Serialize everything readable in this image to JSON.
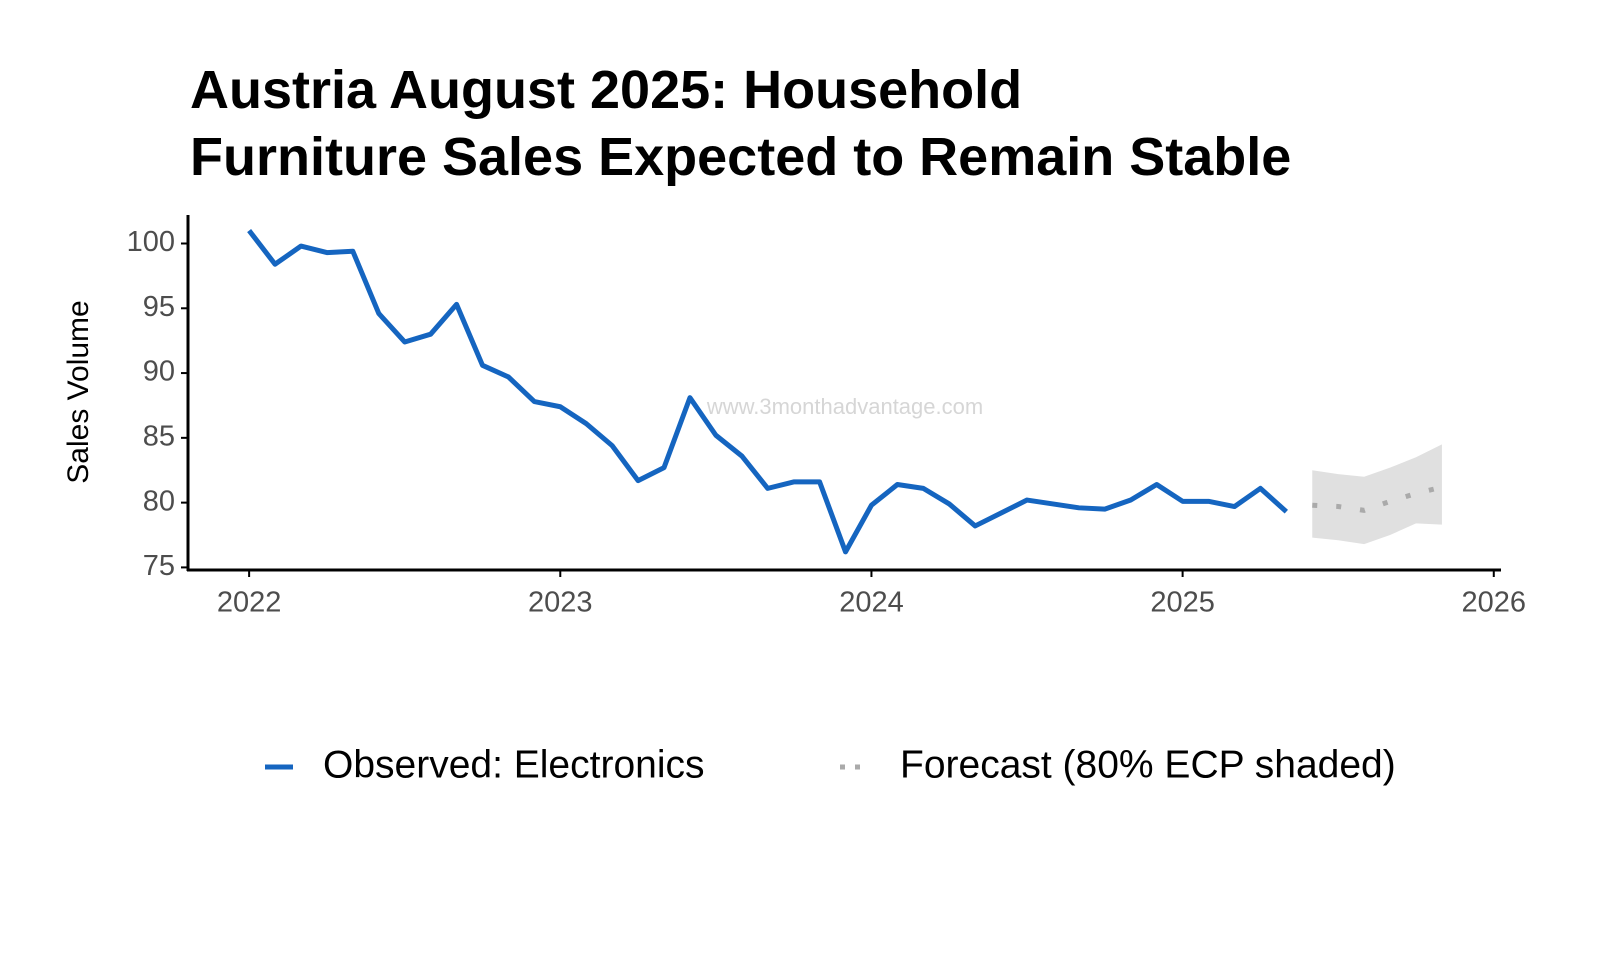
{
  "chart_data": {
    "type": "line",
    "title": [
      "Austria August 2025: Household",
      "Furniture Sales Expected to Remain Stable"
    ],
    "y_label": "Sales Volume",
    "watermark": "www.3monthadvantage.com",
    "xlim": [
      2021.81,
      2026.02
    ],
    "xticks": [
      2022,
      2023,
      2024,
      2025,
      2026
    ],
    "ylim": [
      74.8,
      102.2
    ],
    "yticks": [
      75,
      80,
      85,
      90,
      95,
      100
    ],
    "grid": false,
    "series": [
      {
        "name": "Observed: Electronics",
        "color": "#1565c0",
        "style": "solid",
        "x": [
          "2022-01",
          "2022-02",
          "2022-03",
          "2022-04",
          "2022-05",
          "2022-06",
          "2022-07",
          "2022-08",
          "2022-09",
          "2022-10",
          "2022-11",
          "2022-12",
          "2023-01",
          "2023-02",
          "2023-03",
          "2023-04",
          "2023-05",
          "2023-06",
          "2023-07",
          "2023-08",
          "2023-09",
          "2023-10",
          "2023-11",
          "2023-12",
          "2024-01",
          "2024-02",
          "2024-03",
          "2024-04",
          "2024-05",
          "2024-06",
          "2024-07",
          "2024-08",
          "2024-09",
          "2024-10",
          "2024-11",
          "2024-12",
          "2025-01",
          "2025-02",
          "2025-03",
          "2025-04",
          "2025-05"
        ],
        "values": [
          101.0,
          98.4,
          99.8,
          99.3,
          99.4,
          94.6,
          92.4,
          93.0,
          95.3,
          90.6,
          89.7,
          87.8,
          87.4,
          86.1,
          84.4,
          81.7,
          82.7,
          88.1,
          85.2,
          83.6,
          81.1,
          81.6,
          81.6,
          76.2,
          79.8,
          81.4,
          81.1,
          79.9,
          78.2,
          79.2,
          80.2,
          79.9,
          79.6,
          79.5,
          80.2,
          81.4,
          80.1,
          80.1,
          79.7,
          81.1,
          79.3
        ]
      },
      {
        "name": "Forecast (80% ECP shaded)",
        "color": "#aaaaaa",
        "style": "dotted",
        "band_color": "#e0e0e0",
        "x": [
          "2025-06",
          "2025-07",
          "2025-08",
          "2025-09",
          "2025-10",
          "2025-11"
        ],
        "values": [
          79.8,
          79.7,
          79.4,
          80.1,
          80.7,
          81.2
        ],
        "upper": [
          82.5,
          82.2,
          82.0,
          82.7,
          83.5,
          84.5
        ],
        "lower": [
          77.3,
          77.1,
          76.8,
          77.5,
          78.4,
          78.3
        ]
      }
    ]
  }
}
